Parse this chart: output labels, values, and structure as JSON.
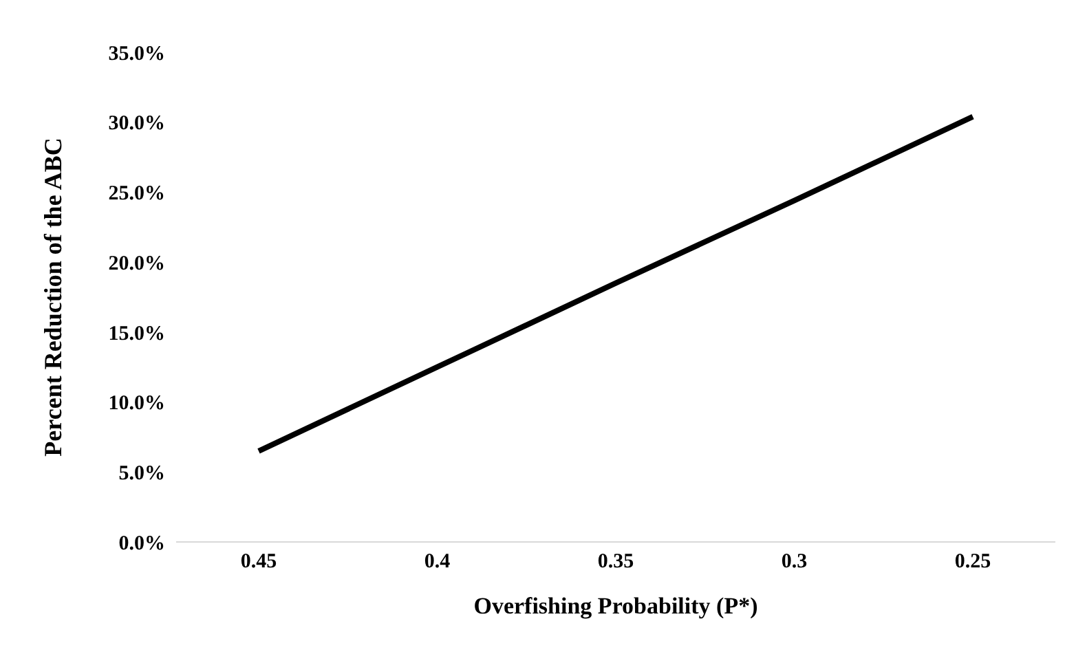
{
  "chart_data": {
    "type": "line",
    "xlabel": "Overfishing  Probability (P*)",
    "ylabel": "Percent Reduction of the ABC",
    "categories": [
      "0.45",
      "0.4",
      "0.35",
      "0.3",
      "0.25"
    ],
    "series": [
      {
        "color": "#000000",
        "values": [
          6.5,
          12.5,
          18.5,
          24.4,
          30.4
        ]
      }
    ],
    "ylim": [
      0,
      35
    ],
    "yticks": [
      {
        "value": 0,
        "label": "0.0%"
      },
      {
        "value": 5,
        "label": "5.0%"
      },
      {
        "value": 10,
        "label": "10.0%"
      },
      {
        "value": 15,
        "label": "15.0%"
      },
      {
        "value": 20,
        "label": "20.0%"
      },
      {
        "value": 25,
        "label": "25.0%"
      },
      {
        "value": 30,
        "label": "30.0%"
      },
      {
        "value": 35,
        "label": "35.0%"
      }
    ],
    "grid": false,
    "legend": false,
    "marker": "none",
    "line_style": "solid"
  }
}
